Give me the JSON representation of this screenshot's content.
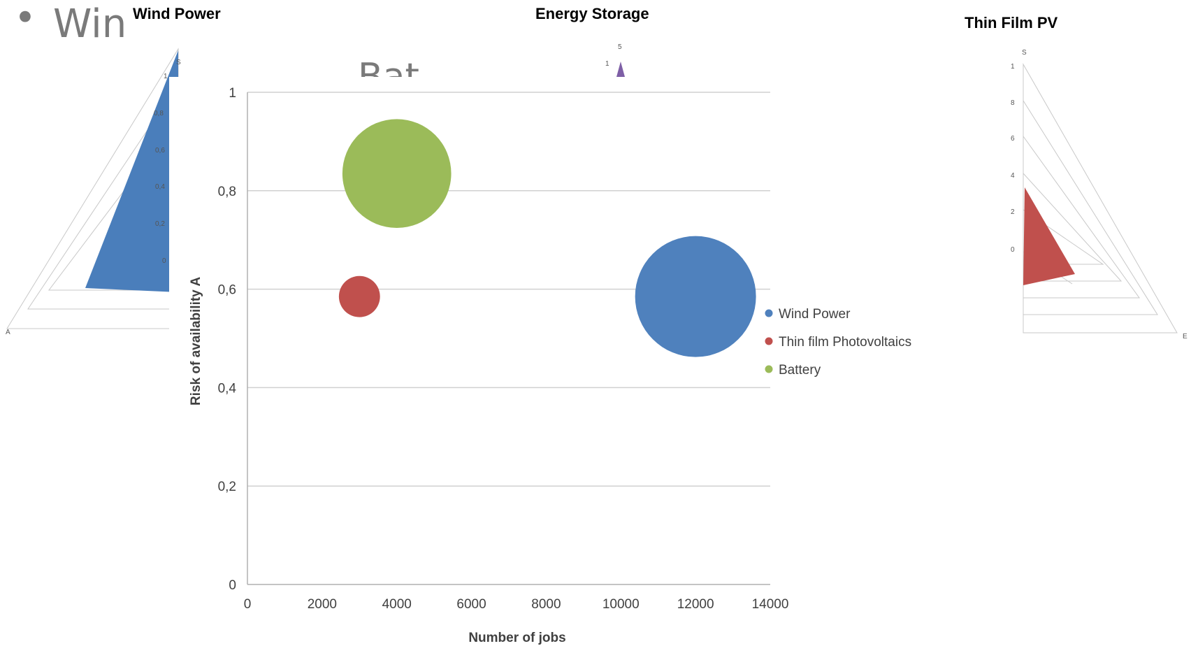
{
  "slide_background": {
    "bullet_text": "Win",
    "partial_text": "Bat"
  },
  "panel_titles": {
    "left": "Wind Power",
    "center": "Energy Storage",
    "right": "Thin Film PV"
  },
  "radar_left": {
    "axis_labels": {
      "top": "S",
      "left": "A"
    },
    "tick_labels": [
      "1",
      "0,8",
      "0,6",
      "0,4",
      "0,2",
      "0"
    ],
    "fill_color": "#4a7ebb"
  },
  "radar_center": {
    "tick_labels": [
      "5",
      "1"
    ],
    "fill_color": "#7e5fa6"
  },
  "radar_right": {
    "axis_labels": {
      "top": "S",
      "right": "E"
    },
    "tick_labels": [
      "1",
      "8",
      "6",
      "4",
      "2",
      "0"
    ],
    "fill_color": "#c0504d"
  },
  "chart_data": {
    "type": "scatter",
    "subtype": "bubble",
    "title": "",
    "xlabel": "Number of jobs",
    "ylabel": "Risk of availability A",
    "xlim": [
      0,
      14000
    ],
    "ylim": [
      0,
      1
    ],
    "x_ticks": [
      "0",
      "2000",
      "4000",
      "6000",
      "8000",
      "10000",
      "12000",
      "14000"
    ],
    "y_ticks": [
      "0",
      "0,2",
      "0,4",
      "0,6",
      "0,8",
      "1"
    ],
    "grid": true,
    "legend_position": "right",
    "series": [
      {
        "name": "Wind Power",
        "x": 12000,
        "y": 0.585,
        "size": 1.0,
        "color": "#4f81bd"
      },
      {
        "name": "Thin film Photovoltaics",
        "x": 3000,
        "y": 0.585,
        "size": 0.34,
        "color": "#c0504d"
      },
      {
        "name": "Battery",
        "x": 4000,
        "y": 0.835,
        "size": 0.9,
        "color": "#9bbb59"
      }
    ]
  }
}
